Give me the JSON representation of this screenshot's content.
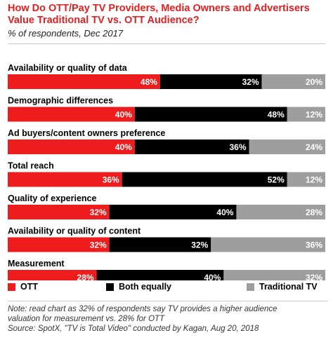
{
  "title": "How Do OTT/Pay TV Providers, Media Owners and Advertisers Value Traditional TV vs. OTT Audience?",
  "subtitle": "% of respondents, Dec 2017",
  "chart_data": {
    "type": "bar",
    "orientation": "horizontal",
    "stacked": true,
    "categories": [
      "Availability or quality of data",
      "Demographic differences",
      "Ad buyers/content owners preference",
      "Total reach",
      "Quality of experience",
      "Availability or quality of content",
      "Measurement"
    ],
    "series": [
      {
        "name": "OTT",
        "color": "#ee1c1c",
        "values": [
          48,
          40,
          40,
          36,
          32,
          32,
          28
        ]
      },
      {
        "name": "Both equally",
        "color": "#000000",
        "values": [
          32,
          48,
          36,
          52,
          40,
          32,
          40
        ]
      },
      {
        "name": "Traditional TV",
        "color": "#9e9e9e",
        "values": [
          20,
          12,
          24,
          12,
          28,
          36,
          32
        ]
      }
    ],
    "value_suffix": "%",
    "xlim": [
      0,
      100
    ],
    "legend_position": "bottom",
    "grid": false
  },
  "note_lines": [
    "Note: read chart as 32% of respondents say TV provides a higher audience",
    "valuation for measurement vs. 28% for OTT",
    "Source: SpotX, \"TV is Total Video\" conducted by Kagan, Aug 20, 2018"
  ]
}
